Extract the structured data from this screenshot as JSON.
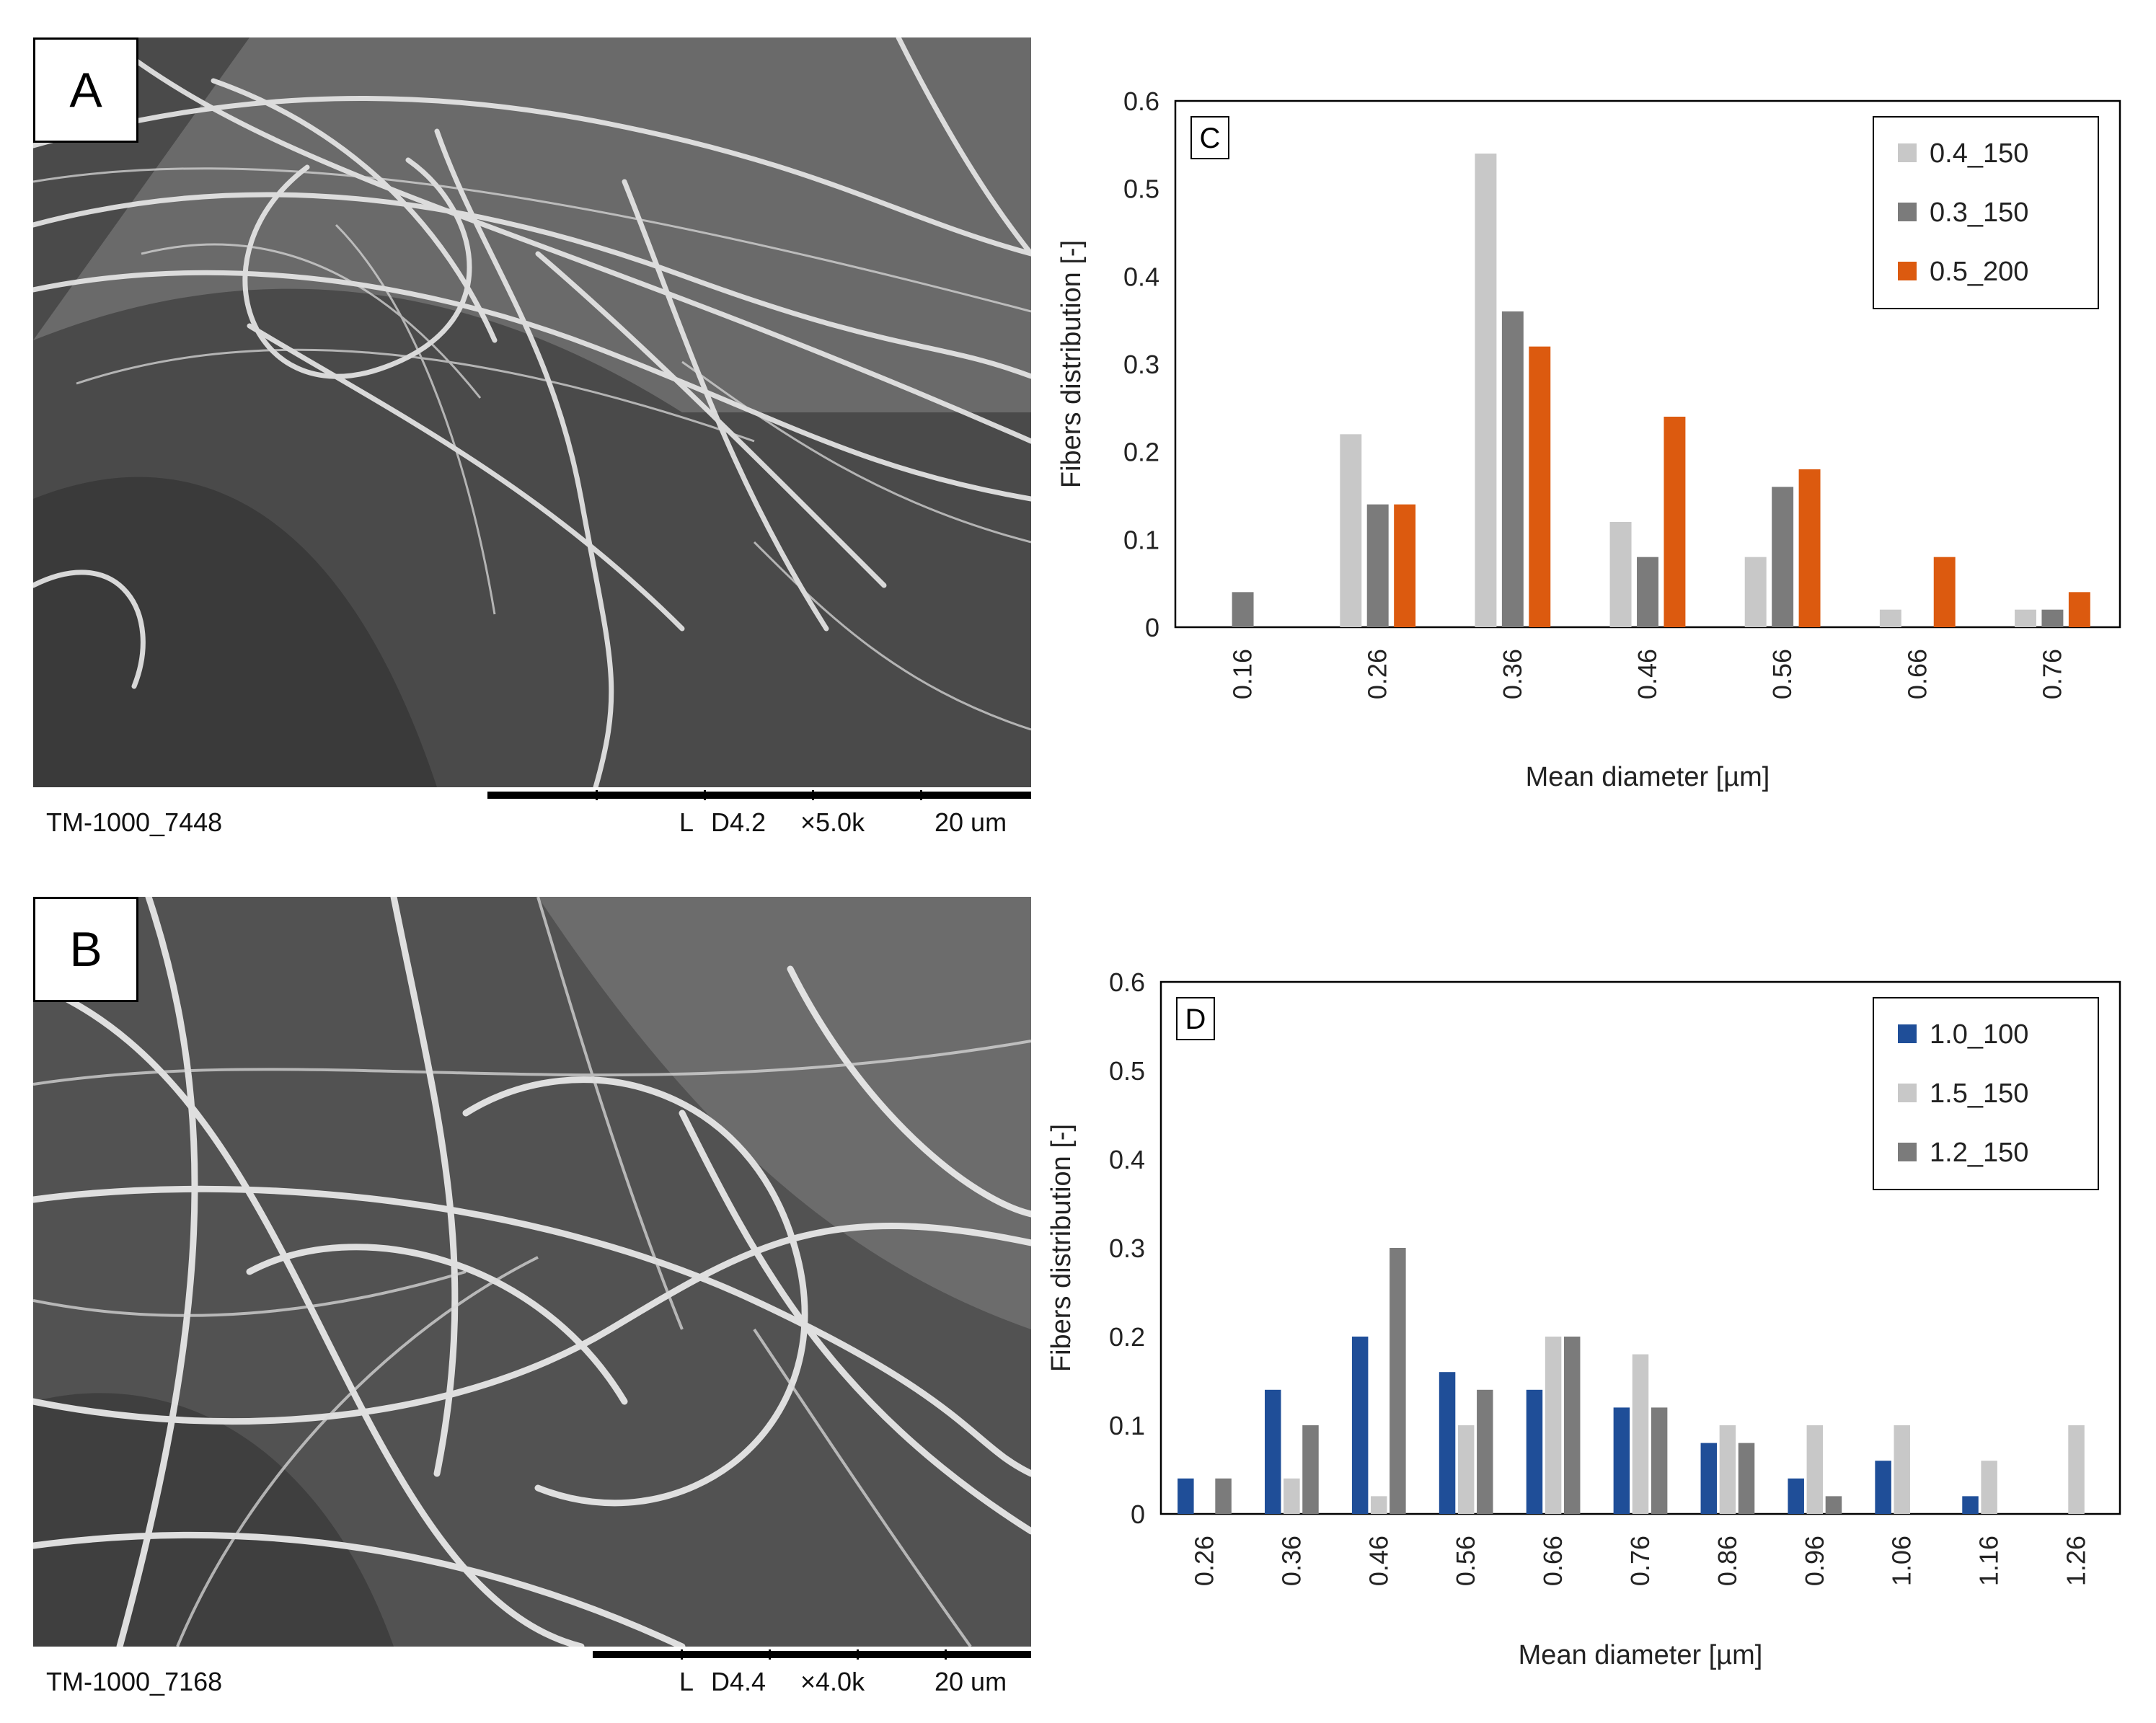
{
  "sem_panels": [
    {
      "label": "A",
      "footer": {
        "id": "TM-1000_7448",
        "mode": "L",
        "wd": "D4.2",
        "mag": "×5.0k",
        "scale": "20 um"
      }
    },
    {
      "label": "B",
      "footer": {
        "id": "TM-1000_7168",
        "mode": "L",
        "wd": "D4.4",
        "mag": "×4.0k",
        "scale": "20 um"
      }
    }
  ],
  "colors": {
    "light_gray": "#c8c8c8",
    "dark_gray": "#7b7b7b",
    "orange": "#dc5a0f",
    "blue": "#1f4e98"
  },
  "chart_data": [
    {
      "type": "bar",
      "panel_label": "C",
      "title": "",
      "xlabel": "Mean diameter [µm]",
      "ylabel": "Fibers distribution  [-]",
      "ylim": [
        0,
        0.6
      ],
      "yticks": [
        "0",
        "0.1",
        "0.2",
        "0.3",
        "0.4",
        "0.5",
        "0.6"
      ],
      "categories": [
        "0.16",
        "0.26",
        "0.36",
        "0.46",
        "0.56",
        "0.66",
        "0.76"
      ],
      "grid": false,
      "legend_position": "top-right",
      "series": [
        {
          "name": "0.4_150",
          "color": "#c8c8c8",
          "values": [
            0,
            0.22,
            0.54,
            0.12,
            0.08,
            0.02,
            0.02
          ]
        },
        {
          "name": "0.3_150",
          "color": "#7b7b7b",
          "values": [
            0.04,
            0.14,
            0.36,
            0.08,
            0.16,
            0,
            0.02
          ]
        },
        {
          "name": "0.5_200",
          "color": "#dc5a0f",
          "values": [
            0,
            0.14,
            0.32,
            0.24,
            0.18,
            0.08,
            0.04
          ]
        }
      ]
    },
    {
      "type": "bar",
      "panel_label": "D",
      "title": "",
      "xlabel": "Mean diameter [µm]",
      "ylabel": "Fibers distribution  [-]",
      "ylim": [
        0,
        0.6
      ],
      "yticks": [
        "0",
        "0.1",
        "0.2",
        "0.3",
        "0.4",
        "0.5",
        "0.6"
      ],
      "categories": [
        "0.26",
        "0.36",
        "0.46",
        "0.56",
        "0.66",
        "0.76",
        "0.86",
        "0.96",
        "1.06",
        "1.16",
        "1.26"
      ],
      "grid": false,
      "legend_position": "top-right",
      "series": [
        {
          "name": "1.0_100",
          "color": "#1f4e98",
          "values": [
            0.04,
            0.14,
            0.2,
            0.16,
            0.14,
            0.12,
            0.08,
            0.04,
            0.06,
            0.02,
            0
          ]
        },
        {
          "name": "1.5_150",
          "color": "#c8c8c8",
          "values": [
            0,
            0.04,
            0.02,
            0.1,
            0.2,
            0.18,
            0.1,
            0.1,
            0.1,
            0.06,
            0.1
          ]
        },
        {
          "name": "1.2_150",
          "color": "#7b7b7b",
          "values": [
            0.04,
            0.1,
            0.3,
            0.14,
            0.2,
            0.12,
            0.08,
            0.02,
            0,
            0,
            0
          ]
        }
      ]
    }
  ]
}
